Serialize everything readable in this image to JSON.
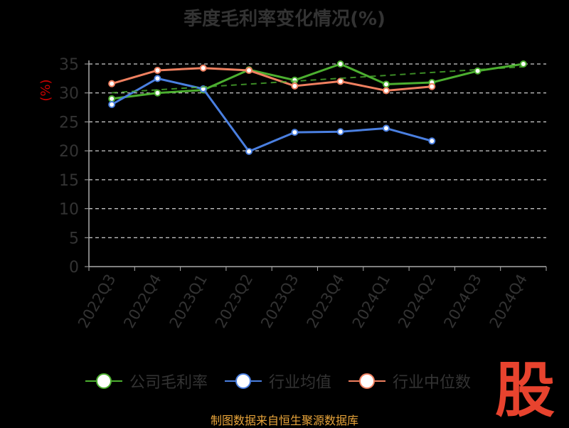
{
  "title": "季度毛利率变化情况(%)",
  "source": "制图数据来自恒生聚源数据库",
  "logo_text": "股",
  "colors": {
    "background": "#000000",
    "title": "#333333",
    "axis": "#aaaaaa",
    "tick_label": "#333333",
    "grid": "#ffffff",
    "ylabel": "#cc0000",
    "source": "#e8a43a",
    "logo": "#e8432e"
  },
  "chart_data": {
    "type": "line",
    "title": "季度毛利率变化情况(%)",
    "xlabel": "",
    "ylabel": "(%)",
    "ylim": [
      0,
      35
    ],
    "yticks": [
      0,
      5,
      10,
      15,
      20,
      25,
      30,
      35
    ],
    "grid": true,
    "legend_position": "bottom",
    "categories": [
      "2022Q3",
      "2022Q4",
      "2023Q1",
      "2023Q2",
      "2023Q3",
      "2023Q4",
      "2024Q1",
      "2024Q2",
      "2024Q3",
      "2024Q4"
    ],
    "series": [
      {
        "name": "公司毛利率",
        "color": "#4caf30",
        "values": [
          29.0,
          30.0,
          30.5,
          34.0,
          32.2,
          35.0,
          31.5,
          31.8,
          33.8,
          35.0
        ]
      },
      {
        "name": "行业均值",
        "color": "#4a7fe0",
        "values": [
          28.0,
          32.5,
          30.7,
          19.9,
          23.2,
          23.3,
          23.9,
          21.7,
          null,
          null
        ]
      },
      {
        "name": "行业中位数",
        "color": "#f08060",
        "values": [
          31.6,
          33.9,
          34.3,
          33.9,
          31.2,
          32.0,
          30.4,
          31.1,
          null,
          null
        ]
      }
    ]
  }
}
